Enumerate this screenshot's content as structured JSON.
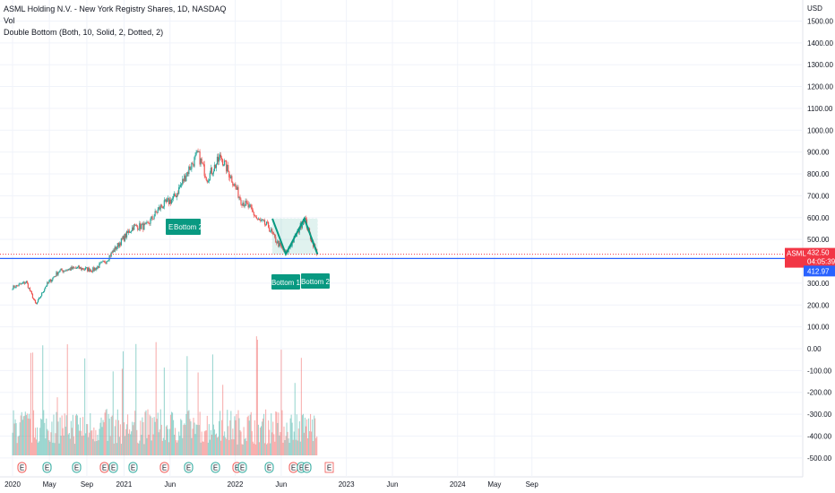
{
  "legend": {
    "title": "ASML Holding N.V. - New York Registry Shares, 1D, NASDAQ",
    "vol": "Vol",
    "indicator": "Double Bottom (Both, 10, Solid, 2, Dotted, 2)"
  },
  "colors": {
    "up": "#26a69a",
    "down": "#ef5350",
    "pattern": "#089981",
    "last_price": "#f23645",
    "level": "#2962ff",
    "grid": "#f0f3fa"
  },
  "chart_data": {
    "type": "candlestick",
    "currency_label": "USD",
    "y_ticks": [
      "1500.00",
      "1400.00",
      "1300.00",
      "1200.00",
      "1100.00",
      "1000.00",
      "900.00",
      "800.00",
      "700.00",
      "600.00",
      "500.00",
      "300.00",
      "200.00",
      "100.00",
      "0.00",
      "-100.00",
      "-200.00",
      "-300.00",
      "-400.00",
      "-500.00"
    ],
    "x_ticks": [
      "2020",
      "May",
      "Sep",
      "2021",
      "Jun",
      "2022",
      "Jun",
      "2023",
      "Jun",
      "2024",
      "May",
      "Sep"
    ],
    "price_path": [
      [
        "2020-01-01",
        280
      ],
      [
        "2020-02-15",
        305
      ],
      [
        "2020-03-18",
        200
      ],
      [
        "2020-04-20",
        290
      ],
      [
        "2020-06-01",
        355
      ],
      [
        "2020-08-01",
        370
      ],
      [
        "2020-09-20",
        360
      ],
      [
        "2020-11-01",
        400
      ],
      [
        "2020-12-15",
        480
      ],
      [
        "2021-02-01",
        560
      ],
      [
        "2021-03-15",
        560
      ],
      [
        "2021-05-01",
        650
      ],
      [
        "2021-06-15",
        690
      ],
      [
        "2021-08-01",
        820
      ],
      [
        "2021-09-01",
        890
      ],
      [
        "2021-10-01",
        780
      ],
      [
        "2021-11-15",
        880
      ],
      [
        "2021-12-20",
        780
      ],
      [
        "2022-01-20",
        680
      ],
      [
        "2022-02-20",
        640
      ],
      [
        "2022-03-15",
        590
      ],
      [
        "2022-04-20",
        560
      ],
      [
        "2022-05-12",
        500
      ],
      [
        "2022-06-16",
        433
      ],
      [
        "2022-07-20",
        520
      ],
      [
        "2022-08-16",
        600
      ],
      [
        "2022-09-05",
        510
      ],
      [
        "2022-09-28",
        433
      ]
    ],
    "double_bottom": {
      "points": [
        [
          "2022-05-03",
          595
        ],
        [
          "2022-06-16",
          433
        ],
        [
          "2022-08-16",
          595
        ],
        [
          "2022-09-28",
          433
        ]
      ],
      "labels": [
        "Bottom 1",
        "Bottom 2"
      ],
      "prior_label": "Bottom 2",
      "prior_label_prefix": "E"
    },
    "last_price": {
      "symbol": "ASML",
      "value": "432.50",
      "countdown": "04:05:39"
    },
    "level": {
      "value": "412.97"
    },
    "event_markers": [
      "E",
      "E",
      "E",
      "E",
      "E",
      "E",
      "E",
      "E",
      "E",
      "E",
      "E",
      "E",
      "E",
      "E",
      "E",
      "E"
    ],
    "future_event": "E",
    "volume_series": "Vol"
  }
}
